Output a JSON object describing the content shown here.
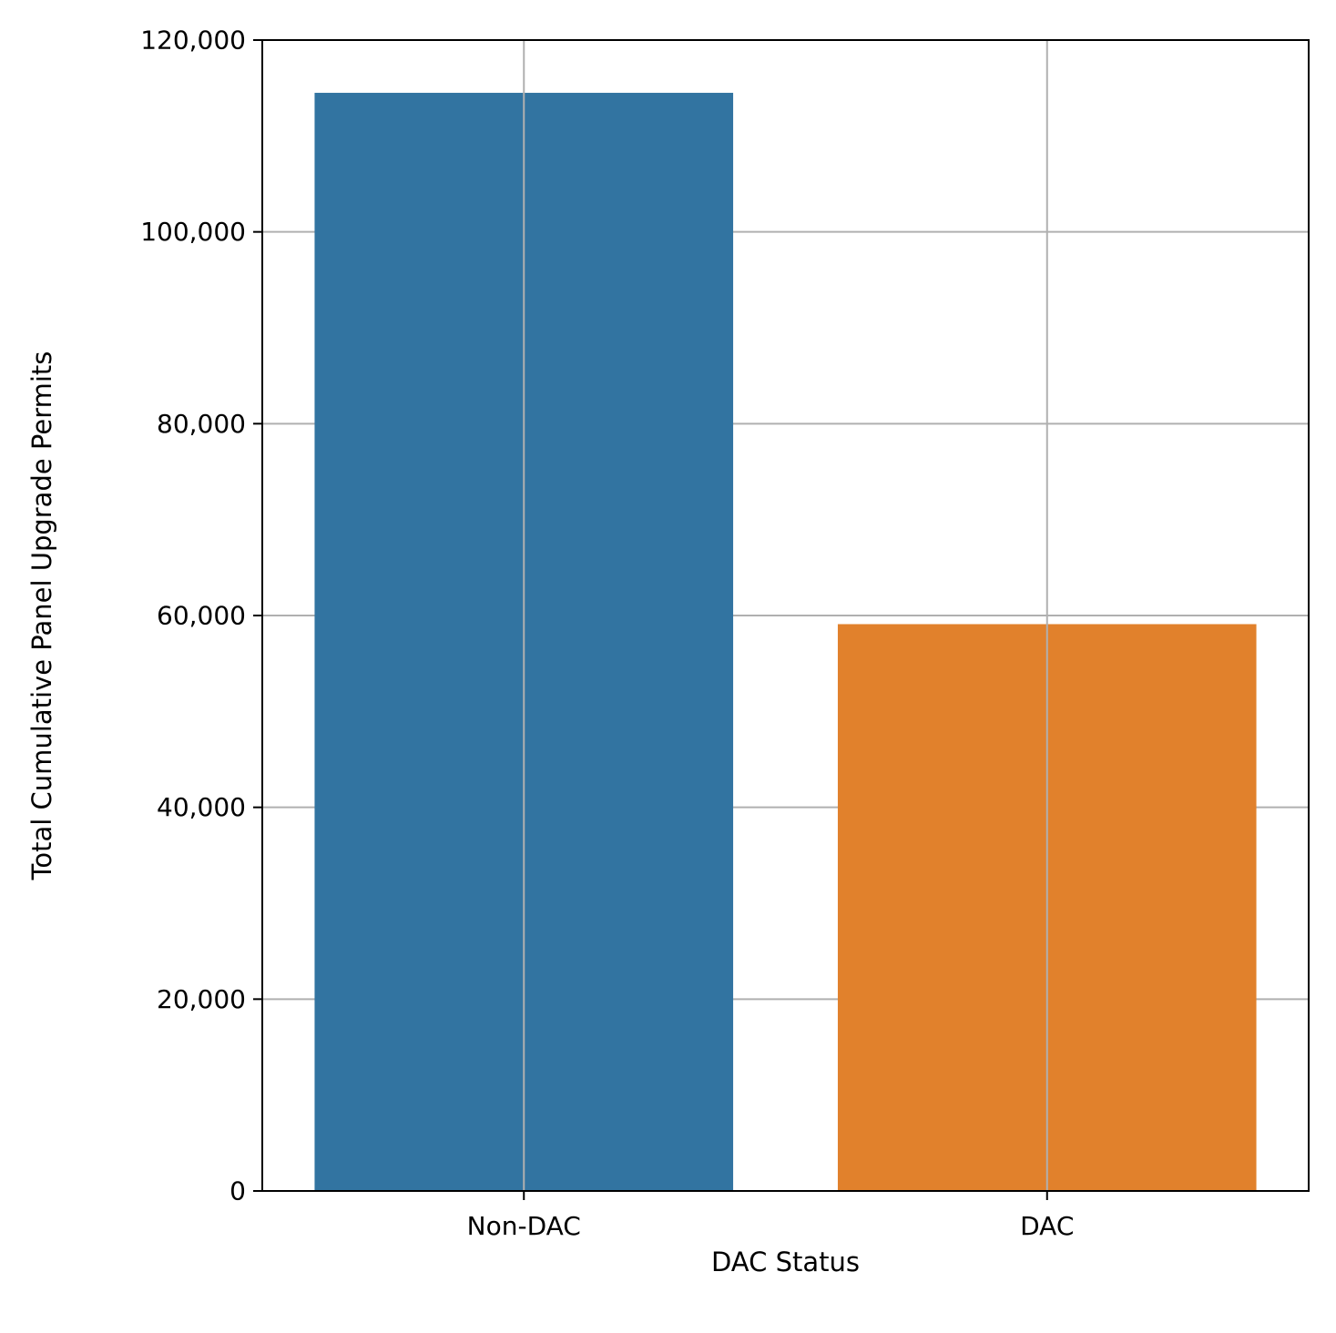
{
  "chart_data": {
    "type": "bar",
    "title": "",
    "xlabel": "DAC Status",
    "ylabel": "Total Cumulative Panel Upgrade Permits",
    "categories": [
      "Non-DAC",
      "DAC"
    ],
    "values": [
      114500,
      59100
    ],
    "colors": [
      "#3274a1",
      "#e1812c"
    ],
    "ylim": [
      0,
      120000
    ],
    "yticks": [
      0,
      20000,
      40000,
      60000,
      80000,
      100000,
      120000
    ],
    "ytick_labels": [
      "0",
      "20,000",
      "40,000",
      "60,000",
      "80,000",
      "100,000",
      "120,000"
    ],
    "grid": true,
    "grid_color": "#b0b0b0",
    "legend": "none"
  }
}
